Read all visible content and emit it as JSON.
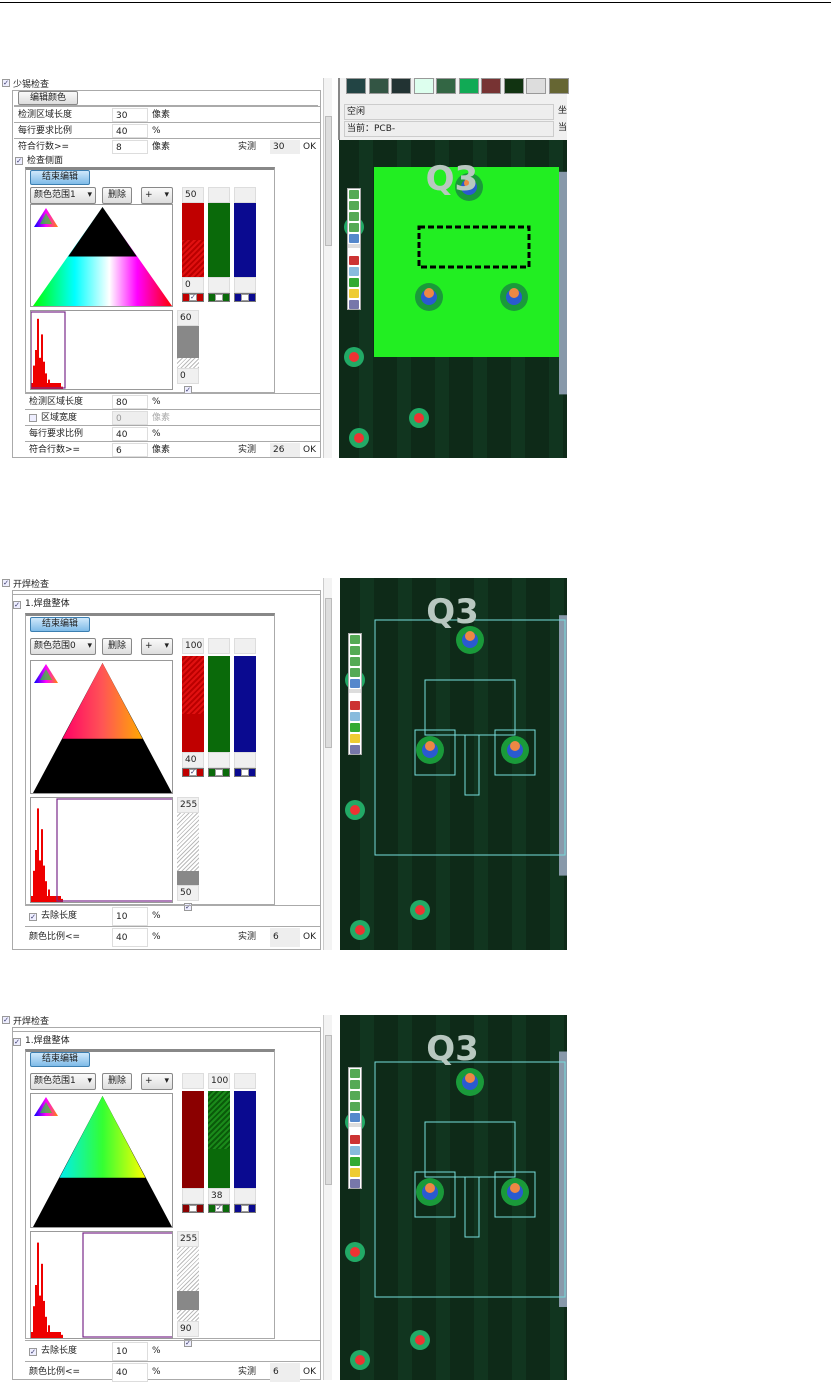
{
  "panels": [
    {
      "title": "少锡检查",
      "checked": true,
      "edit_color_label": "编辑颜色",
      "rows_top": [
        {
          "label": "检测区域长度",
          "value": "30",
          "unit": "像素"
        },
        {
          "label": "每行要求比例",
          "value": "40",
          "unit": "%"
        },
        {
          "label": "符合行数>=",
          "value": "8",
          "unit": "像素",
          "measured_label": "实测",
          "measured": "30",
          "status": "OK"
        }
      ],
      "sub_title": "检查侧面",
      "end_edit_label": "结束编辑",
      "color_range": "颜色范围1",
      "delete_label": "删除",
      "op": "+",
      "channels": [
        {
          "color": "#c00000",
          "top": "50",
          "bottom": "0",
          "checked": true,
          "active": true
        },
        {
          "color": "#0a6a0a",
          "top": "",
          "bottom": "",
          "checked": false
        },
        {
          "color": "#0a0a90",
          "top": "",
          "bottom": "",
          "checked": false
        }
      ],
      "gray": {
        "top": "60",
        "bottom": "0",
        "checked": true
      },
      "rows_bottom": [
        {
          "label": "检测区域长度",
          "value": "80",
          "unit": "%"
        },
        {
          "label": "区域宽度",
          "value": "0",
          "unit": "像素",
          "checkbox": true,
          "disabled": true
        },
        {
          "label": "每行要求比例",
          "value": "40",
          "unit": "%"
        },
        {
          "label": "符合行数>=",
          "value": "6",
          "unit": "像素",
          "measured_label": "实测",
          "measured": "26",
          "status": "OK"
        }
      ],
      "view": {
        "status": "空闲",
        "current": "当前：PCB-",
        "side1": "坐",
        "side2": "当",
        "label": "Q3"
      }
    },
    {
      "title": "开焊检查",
      "checked": true,
      "sub_title": "1.焊盘整体",
      "end_edit_label": "结束编辑",
      "color_range": "颜色范围0",
      "delete_label": "删除",
      "op": "+",
      "channels": [
        {
          "color": "#c00000",
          "top": "100",
          "bottom": "40",
          "checked": true,
          "active": true
        },
        {
          "color": "#0a6a0a",
          "top": "",
          "bottom": "",
          "checked": false
        },
        {
          "color": "#0a0a90",
          "top": "",
          "bottom": "",
          "checked": false
        }
      ],
      "gray": {
        "top": "255",
        "bottom": "50",
        "checked": true
      },
      "rows_bottom": [
        {
          "label": "去除长度",
          "value": "10",
          "unit": "%",
          "checkbox": true,
          "checked": true
        },
        {
          "label": "颜色比例<=",
          "value": "40",
          "unit": "%",
          "measured_label": "实测",
          "measured": "6",
          "status": "OK"
        }
      ],
      "view": {
        "label": "Q3"
      }
    },
    {
      "title": "开焊检查",
      "checked": true,
      "sub_title": "1.焊盘整体",
      "end_edit_label": "结束编辑",
      "color_range": "颜色范围1",
      "delete_label": "删除",
      "op": "+",
      "channels": [
        {
          "color": "#8b0000",
          "top": "",
          "bottom": "",
          "checked": false
        },
        {
          "color": "#0a6a0a",
          "top": "100",
          "bottom": "38",
          "checked": true,
          "active": true
        },
        {
          "color": "#0a0a90",
          "top": "",
          "bottom": "",
          "checked": false
        }
      ],
      "gray": {
        "top": "255",
        "bottom": "90",
        "checked": true
      },
      "rows_bottom": [
        {
          "label": "去除长度",
          "value": "10",
          "unit": "%",
          "checkbox": true,
          "checked": true
        },
        {
          "label": "颜色比例<=",
          "value": "40",
          "unit": "%",
          "measured_label": "实测",
          "measured": "6",
          "status": "OK"
        }
      ],
      "view": {
        "label": "Q3"
      }
    }
  ]
}
